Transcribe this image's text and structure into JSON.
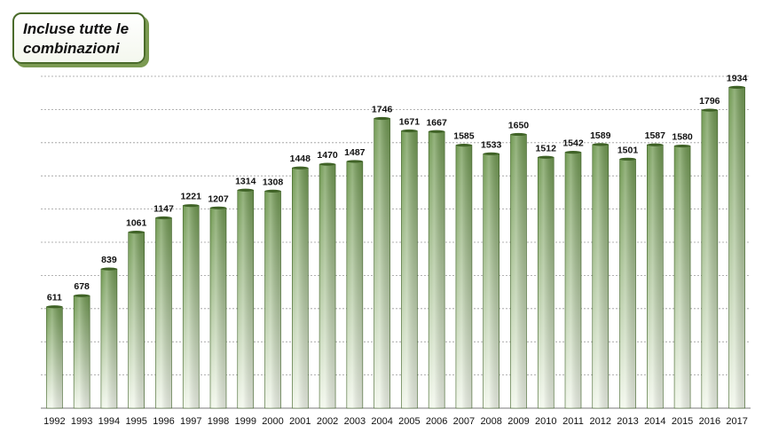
{
  "title": "Incluse tutte le\ncombinazioni",
  "colors": {
    "bar_top": "#6f9850",
    "bar_bottom": "#f2f7ec",
    "bar_edge": "#3f6226",
    "grid": "#9a9a9a",
    "axis": "#7a7a7a"
  },
  "chart_data": {
    "type": "bar",
    "categories": [
      "1992",
      "1993",
      "1994",
      "1995",
      "1996",
      "1997",
      "1998",
      "1999",
      "2000",
      "2001",
      "2002",
      "2003",
      "2004",
      "2005",
      "2006",
      "2007",
      "2008",
      "2009",
      "2010",
      "2011",
      "2012",
      "2013",
      "2014",
      "2015",
      "2016",
      "2017"
    ],
    "values": [
      611,
      678,
      839,
      1061,
      1147,
      1221,
      1207,
      1314,
      1308,
      1448,
      1470,
      1487,
      1746,
      1671,
      1667,
      1585,
      1533,
      1650,
      1512,
      1542,
      1589,
      1501,
      1587,
      1580,
      1796,
      1934
    ],
    "ylim": [
      0,
      2000
    ],
    "grid": true,
    "data_labels": true,
    "xlabel": "",
    "ylabel": ""
  }
}
